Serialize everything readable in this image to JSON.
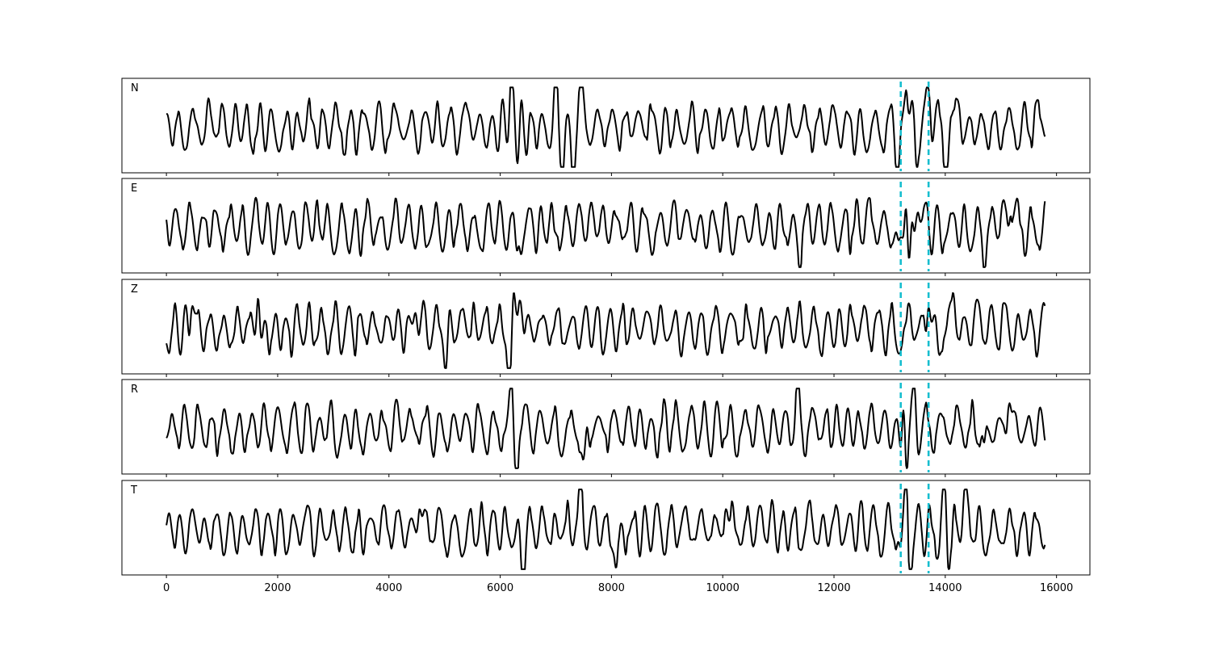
{
  "chart_data": {
    "type": "line",
    "title": "",
    "xlabel": "",
    "ylabel": "",
    "xlim": [
      -800,
      16600
    ],
    "x_ticks": [
      0,
      2000,
      4000,
      6000,
      8000,
      10000,
      12000,
      14000,
      16000
    ],
    "x_tick_labels": [
      "0",
      "2000",
      "4000",
      "6000",
      "8000",
      "10000",
      "12000",
      "14000",
      "16000"
    ],
    "x_range_samples": [
      0,
      15800
    ],
    "markers": {
      "x": [
        13200,
        13700
      ],
      "color": "#17becf",
      "style": "dashed"
    },
    "line_color": "#000000",
    "y_axis_visible": false,
    "grid": false,
    "shared_x": true,
    "panels": [
      {
        "label": "N",
        "events": [
          [
            6200,
            1.3
          ],
          [
            6300,
            -1.1
          ],
          [
            6380,
            1.4
          ],
          [
            6480,
            -1.2
          ],
          [
            7000,
            1.2
          ],
          [
            7120,
            -1.1
          ],
          [
            7300,
            -1.3
          ],
          [
            7450,
            0.9
          ],
          [
            13150,
            -1.1
          ],
          [
            13300,
            1.3
          ],
          [
            13480,
            -0.9
          ],
          [
            13700,
            1.0
          ],
          [
            14000,
            -1.4
          ],
          [
            14250,
            0.8
          ]
        ]
      },
      {
        "label": "E",
        "events": [
          [
            6300,
            -0.9
          ],
          [
            11400,
            -1.0
          ],
          [
            11550,
            0.9
          ],
          [
            13150,
            -0.7
          ],
          [
            13300,
            1.4
          ],
          [
            13340,
            -1.6
          ],
          [
            13500,
            0.7
          ],
          [
            14700,
            -1.0
          ],
          [
            15200,
            0.8
          ]
        ]
      },
      {
        "label": "Z",
        "events": [
          [
            460,
            1.0
          ],
          [
            1650,
            1.6
          ],
          [
            1700,
            -0.7
          ],
          [
            4480,
            0.8
          ],
          [
            5020,
            -0.9
          ],
          [
            6180,
            -1.6
          ],
          [
            6230,
            1.0
          ],
          [
            6380,
            1.1
          ],
          [
            13700,
            1.0
          ],
          [
            13880,
            -0.8
          ],
          [
            14150,
            1.0
          ]
        ]
      },
      {
        "label": "R",
        "events": [
          [
            6200,
            1.3
          ],
          [
            6290,
            -0.9
          ],
          [
            7500,
            -1.0
          ],
          [
            11350,
            1.1
          ],
          [
            13200,
            -0.8
          ],
          [
            13260,
            1.8
          ],
          [
            13300,
            -1.6
          ],
          [
            13450,
            0.8
          ],
          [
            14700,
            -0.9
          ],
          [
            15150,
            0.9
          ]
        ]
      },
      {
        "label": "T",
        "events": [
          [
            4550,
            0.9
          ],
          [
            6400,
            -1.4
          ],
          [
            7450,
            1.4
          ],
          [
            8100,
            -1.0
          ],
          [
            10050,
            1.0
          ],
          [
            13200,
            -0.9
          ],
          [
            13300,
            1.6
          ],
          [
            13360,
            -1.5
          ],
          [
            14000,
            1.2
          ],
          [
            14050,
            -1.1
          ],
          [
            14350,
            0.9
          ]
        ]
      }
    ]
  }
}
